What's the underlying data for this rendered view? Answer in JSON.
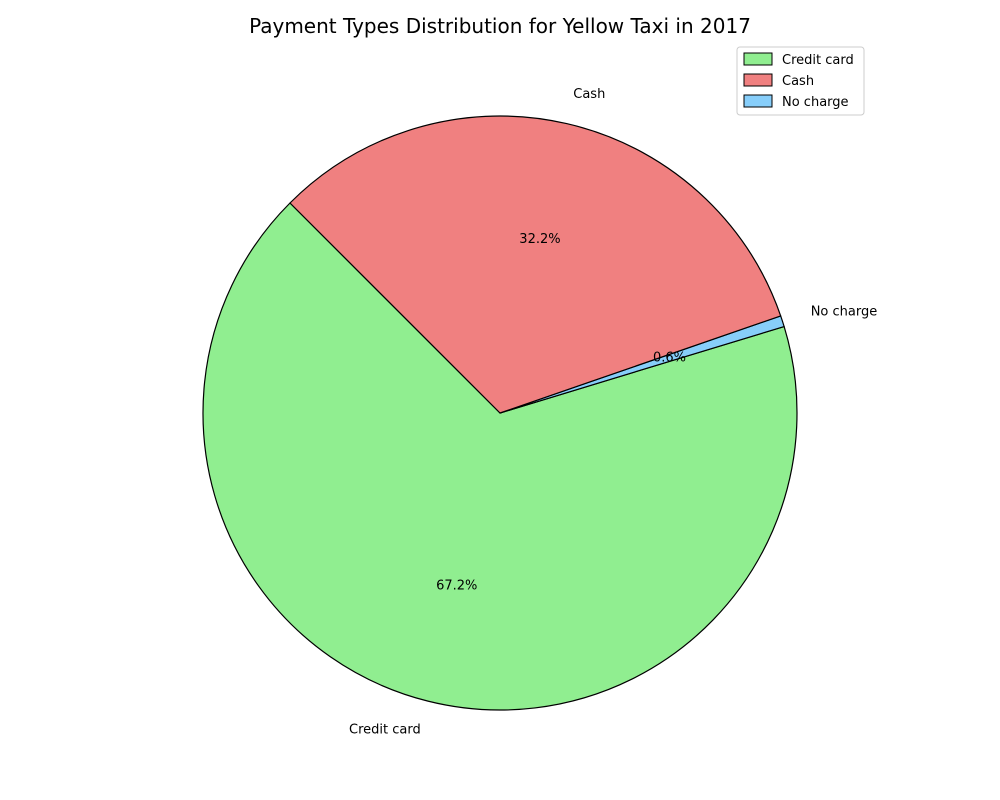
{
  "chart_data": {
    "type": "pie",
    "title": "Payment Types Distribution for Yellow Taxi in 2017",
    "start_angle_deg": 135,
    "direction": "counterclockwise",
    "slices": [
      {
        "label": "Credit card",
        "percent": 67.2,
        "percent_label": "67.2%",
        "color": "#90ee90"
      },
      {
        "label": "No charge",
        "percent": 0.6,
        "percent_label": "0.6%",
        "color": "#87cefa"
      },
      {
        "label": "Cash",
        "percent": 32.2,
        "percent_label": "32.2%",
        "color": "#f08080"
      }
    ],
    "legend": {
      "placement": "top-right",
      "entries": [
        {
          "label": "Credit card",
          "color": "#90ee90"
        },
        {
          "label": "Cash",
          "color": "#f08080"
        },
        {
          "label": "No charge",
          "color": "#87cefa"
        }
      ]
    },
    "edge_color": "#000000"
  }
}
